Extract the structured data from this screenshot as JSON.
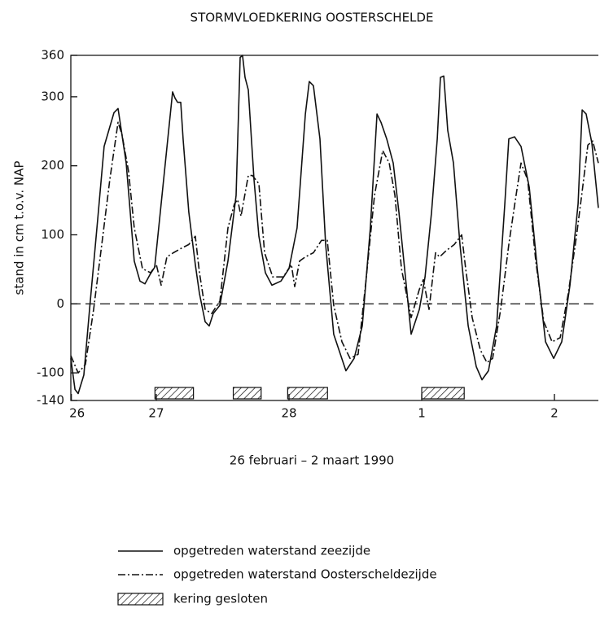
{
  "chart_data": {
    "type": "line",
    "title": "STORMVLOEDKERING OOSTERSCHELDE",
    "y_label": "stand in cm t.o.v. NAP",
    "x_label": "26 februari  –  2 maart  1990",
    "xlim": [
      0.356,
      4.331
    ],
    "xticks": [
      {
        "value": 0.36,
        "label": "26"
      },
      {
        "value": 1,
        "label": "27"
      },
      {
        "value": 2,
        "label": "28"
      },
      {
        "value": 3,
        "label": "1"
      },
      {
        "value": 4,
        "label": "2"
      }
    ],
    "ylim": [
      -140,
      360
    ],
    "yticks": [
      -140,
      -100,
      0,
      100,
      200,
      300,
      360
    ],
    "zero_line": true,
    "series": [
      {
        "name": "opgetreden waterstand zeezijde",
        "color": "#111111",
        "dash": "solid",
        "x": [
          0.356,
          0.387,
          0.411,
          0.454,
          0.497,
          0.558,
          0.607,
          0.681,
          0.712,
          0.773,
          0.834,
          0.877,
          0.914,
          0.951,
          0.988,
          1.123,
          1.141,
          1.16,
          1.184,
          1.202,
          1.245,
          1.294,
          1.325,
          1.368,
          1.399,
          1.429,
          1.479,
          1.54,
          1.601,
          1.632,
          1.65,
          1.669,
          1.693,
          1.736,
          1.773,
          1.822,
          1.871,
          1.939,
          2.0,
          2.061,
          2.123,
          2.153,
          2.184,
          2.233,
          2.276,
          2.337,
          2.429,
          2.491,
          2.552,
          2.613,
          2.663,
          2.693,
          2.736,
          2.785,
          2.828,
          2.877,
          2.92,
          2.982,
          3.025,
          3.074,
          3.117,
          3.141,
          3.166,
          3.196,
          3.239,
          3.288,
          3.35,
          3.411,
          3.454,
          3.503,
          3.564,
          3.626,
          3.656,
          3.699,
          3.748,
          3.81,
          3.871,
          3.933,
          3.994,
          4.055,
          4.117,
          4.178,
          4.209,
          4.239,
          4.282,
          4.331
        ],
        "values": [
          -79,
          -124,
          -130,
          -103,
          -8,
          121,
          228,
          277,
          283,
          204,
          62,
          33,
          29,
          42,
          53,
          307,
          298,
          292,
          292,
          239,
          133,
          57,
          15,
          -26,
          -32,
          -14,
          -2,
          62,
          157,
          357,
          360,
          328,
          310,
          180,
          98,
          45,
          27,
          33,
          51,
          110,
          275,
          322,
          316,
          239,
          86,
          -44,
          -97,
          -79,
          -32,
          110,
          275,
          263,
          239,
          204,
          133,
          39,
          -44,
          -8,
          39,
          133,
          239,
          328,
          330,
          251,
          204,
          86,
          -32,
          -91,
          -110,
          -97,
          -32,
          145,
          239,
          242,
          228,
          169,
          51,
          -55,
          -79,
          -55,
          27,
          145,
          281,
          275,
          233,
          139
        ]
      },
      {
        "name": "opgetreden waterstand Oosterscheldezijde",
        "color": "#111111",
        "dash": "dashdot",
        "x": [
          0.356,
          0.411,
          0.466,
          0.528,
          0.589,
          0.65,
          0.712,
          0.742,
          0.791,
          0.834,
          0.896,
          0.957,
          1.0,
          1.037,
          1.08,
          1.129,
          1.184,
          1.245,
          1.294,
          1.325,
          1.368,
          1.417,
          1.479,
          1.54,
          1.589,
          1.613,
          1.638,
          1.693,
          1.724,
          1.773,
          1.816,
          1.877,
          1.957,
          2.018,
          2.043,
          2.08,
          2.123,
          2.184,
          2.245,
          2.288,
          2.337,
          2.399,
          2.46,
          2.521,
          2.583,
          2.644,
          2.706,
          2.755,
          2.798,
          2.847,
          2.92,
          2.982,
          3.012,
          3.055,
          3.104,
          3.135,
          3.184,
          3.245,
          3.301,
          3.331,
          3.38,
          3.442,
          3.491,
          3.534,
          3.595,
          3.656,
          3.706,
          3.748,
          3.798,
          3.859,
          3.92,
          3.982,
          4.043,
          4.104,
          4.166,
          4.209,
          4.252,
          4.288,
          4.331
        ],
        "values": [
          -75,
          -100,
          -88,
          -8,
          86,
          180,
          263,
          245,
          192,
          110,
          51,
          45,
          57,
          27,
          68,
          74,
          80,
          86,
          98,
          45,
          -8,
          -14,
          4,
          110,
          145,
          151,
          127,
          186,
          186,
          174,
          74,
          39,
          39,
          57,
          25,
          62,
          68,
          74,
          92,
          92,
          -2,
          -55,
          -79,
          -73,
          39,
          157,
          222,
          204,
          157,
          51,
          -20,
          21,
          35,
          -8,
          74,
          68,
          77,
          86,
          100,
          51,
          -20,
          -67,
          -85,
          -79,
          -8,
          86,
          151,
          204,
          180,
          62,
          -26,
          -55,
          -49,
          15,
          98,
          163,
          230,
          236,
          204
        ]
      }
    ],
    "barrier_closed": {
      "name": "kering gesloten",
      "periods": [
        [
          0.99,
          1.28
        ],
        [
          1.58,
          1.79
        ],
        [
          1.99,
          2.29
        ],
        [
          3.0,
          3.32
        ]
      ]
    }
  }
}
